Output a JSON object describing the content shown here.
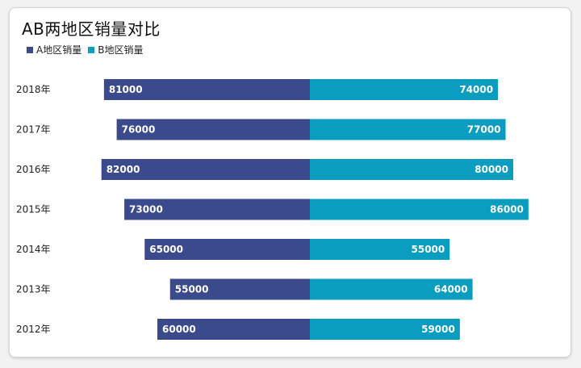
{
  "chart_data": {
    "type": "bar",
    "orientation": "horizontal-diverging",
    "title": "AB两地区销量对比",
    "categories": [
      "2018年",
      "2017年",
      "2016年",
      "2015年",
      "2014年",
      "2013年",
      "2012年"
    ],
    "series": [
      {
        "name": "A地区销量",
        "values": [
          81000,
          76000,
          82000,
          73000,
          65000,
          55000,
          60000
        ],
        "color": "#3a4a8c"
      },
      {
        "name": "B地区销量",
        "values": [
          74000,
          77000,
          80000,
          86000,
          55000,
          64000,
          59000
        ],
        "color": "#0a9dc0"
      }
    ],
    "value_max": 100000,
    "legend_position": "top-left",
    "grid": false
  }
}
